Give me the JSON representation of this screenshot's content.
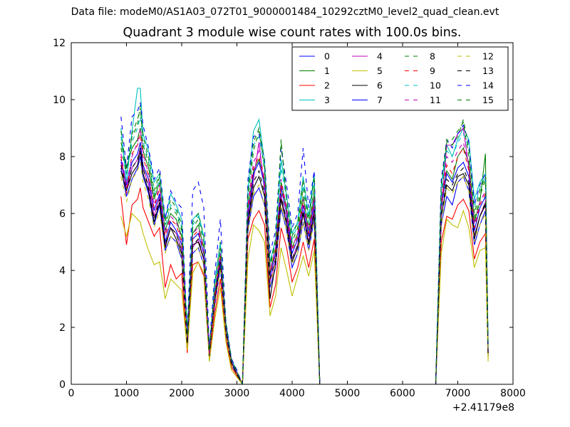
{
  "figure": {
    "supertitle": "Data file: modeM0/AS1A03_072T01_9000001484_10292cztM0_level2_quad_clean.evt"
  },
  "chart_data": {
    "type": "line",
    "title": "Quadrant 3 module wise count rates with 100.0s bins.",
    "xlabel": "",
    "ylabel": "",
    "x_offset_label": "+2.41179e8",
    "xlim": [
      0,
      8000
    ],
    "ylim": [
      0,
      12
    ],
    "xticks": [
      0,
      1000,
      2000,
      3000,
      4000,
      5000,
      6000,
      7000,
      8000
    ],
    "yticks": [
      0,
      2,
      4,
      6,
      8,
      10,
      12
    ],
    "grid": false,
    "legend_position": "top-right",
    "legend_columns": 4,
    "x": [
      900,
      1000,
      1100,
      1200,
      1250,
      1300,
      1400,
      1500,
      1600,
      1700,
      1800,
      1900,
      2000,
      2100,
      2200,
      2300,
      2400,
      2500,
      2600,
      2700,
      2800,
      2900,
      3000,
      3100,
      3200,
      3300,
      3400,
      3500,
      3600,
      3700,
      3800,
      3900,
      4000,
      4100,
      4200,
      4300,
      4400,
      4500,
      4600,
      5000,
      5500,
      6000,
      6500,
      6600,
      6700,
      6800,
      6900,
      7000,
      7100,
      7200,
      7300,
      7400,
      7500,
      7550
    ],
    "gap_value": 0,
    "series": [
      {
        "name": "0",
        "color": "#0000ff",
        "dash": "solid",
        "values": [
          7.6,
          6.6,
          7.2,
          7.6,
          8.0,
          7.3,
          6.7,
          5.6,
          6.3,
          4.7,
          5.2,
          5.0,
          4.4,
          1.3,
          4.6,
          4.8,
          4.2,
          1.0,
          2.8,
          4.1,
          1.8,
          0.7,
          0.35,
          0.0,
          5.4,
          6.6,
          6.9,
          6.3,
          3.4,
          4.1,
          6.2,
          5.4,
          4.1,
          4.6,
          5.7,
          4.7,
          5.8,
          0,
          0,
          0,
          0,
          0,
          0,
          0,
          5.6,
          6.6,
          6.3,
          7.1,
          7.3,
          6.8,
          4.9,
          5.6,
          6.1,
          1.0
        ]
      },
      {
        "name": "1",
        "color": "#008000",
        "dash": "solid",
        "values": [
          8.5,
          7.6,
          8.3,
          8.6,
          9.0,
          8.2,
          7.6,
          6.5,
          7.1,
          5.4,
          6.0,
          5.8,
          5.2,
          1.6,
          5.3,
          5.6,
          4.8,
          1.1,
          3.2,
          4.6,
          2.0,
          0.8,
          0.4,
          0.0,
          6.2,
          7.5,
          7.9,
          7.2,
          3.9,
          4.8,
          7.1,
          6.2,
          4.8,
          5.3,
          6.6,
          5.4,
          6.7,
          0,
          0,
          0,
          0,
          0,
          0,
          0,
          6.4,
          7.5,
          7.2,
          8.0,
          8.3,
          7.8,
          5.7,
          6.4,
          8.1,
          1.2
        ]
      },
      {
        "name": "2",
        "color": "#ff0000",
        "dash": "solid",
        "values": [
          6.6,
          4.9,
          6.3,
          6.5,
          6.9,
          6.2,
          5.7,
          5.2,
          5.5,
          3.4,
          4.2,
          3.7,
          3.9,
          1.1,
          4.2,
          4.3,
          3.8,
          0.9,
          2.5,
          3.7,
          1.6,
          0.6,
          0.3,
          0.0,
          5.1,
          5.8,
          6.1,
          5.6,
          2.7,
          3.5,
          5.5,
          4.8,
          3.6,
          4.1,
          5.0,
          4.1,
          5.1,
          0,
          0,
          0,
          0,
          0,
          0,
          0,
          5.0,
          5.9,
          5.8,
          6.3,
          6.5,
          6.1,
          4.4,
          5.0,
          5.3,
          0.9
        ]
      },
      {
        "name": "3",
        "color": "#00bfbf",
        "dash": "solid",
        "values": [
          9.0,
          7.1,
          8.9,
          10.4,
          10.4,
          8.8,
          8.2,
          7.1,
          7.4,
          5.8,
          6.7,
          6.3,
          5.8,
          1.9,
          5.8,
          6.0,
          5.2,
          1.2,
          3.6,
          5.0,
          2.2,
          0.9,
          0.45,
          0.0,
          6.9,
          8.9,
          9.3,
          7.8,
          4.3,
          5.1,
          7.9,
          6.6,
          5.3,
          5.7,
          7.3,
          5.9,
          7.4,
          0,
          0,
          0,
          0,
          0,
          0,
          0,
          7.0,
          8.4,
          8.0,
          8.6,
          9.0,
          8.6,
          6.5,
          7.1,
          7.4,
          1.3
        ]
      },
      {
        "name": "4",
        "color": "#bf00bf",
        "dash": "solid",
        "values": [
          7.8,
          6.9,
          7.6,
          7.9,
          8.3,
          7.6,
          7.0,
          5.9,
          6.6,
          4.9,
          5.5,
          5.3,
          4.7,
          1.4,
          4.8,
          5.1,
          4.4,
          1.0,
          2.9,
          4.3,
          1.9,
          0.7,
          0.35,
          0.0,
          5.7,
          7.2,
          8.5,
          6.8,
          3.6,
          4.4,
          6.6,
          5.8,
          4.4,
          4.9,
          6.1,
          5.0,
          6.2,
          0,
          0,
          0,
          0,
          0,
          0,
          0,
          6.1,
          8.4,
          8.4,
          8.8,
          9.0,
          7.6,
          5.2,
          5.9,
          6.4,
          1.1
        ]
      },
      {
        "name": "5",
        "color": "#bfbf00",
        "dash": "solid",
        "values": [
          5.9,
          5.2,
          6.0,
          5.8,
          5.7,
          5.3,
          4.7,
          4.2,
          4.3,
          3.0,
          3.7,
          3.5,
          3.3,
          1.2,
          3.9,
          4.3,
          3.9,
          0.8,
          2.3,
          3.4,
          1.5,
          0.5,
          0.25,
          0.0,
          4.4,
          5.6,
          5.4,
          5.0,
          2.4,
          3.1,
          4.8,
          4.0,
          3.1,
          3.8,
          4.5,
          3.8,
          4.7,
          0,
          0,
          0,
          0,
          0,
          0,
          0,
          4.6,
          5.8,
          5.6,
          5.5,
          6.1,
          5.5,
          4.1,
          4.7,
          4.8,
          0.8
        ]
      },
      {
        "name": "6",
        "color": "#000000",
        "dash": "solid",
        "values": [
          7.5,
          6.8,
          7.4,
          7.7,
          8.2,
          7.4,
          6.8,
          5.7,
          6.4,
          4.8,
          5.5,
          5.1,
          4.6,
          1.4,
          4.9,
          5.0,
          4.4,
          1.1,
          3.0,
          4.3,
          1.9,
          0.7,
          0.35,
          0.0,
          5.6,
          6.9,
          7.3,
          6.6,
          3.0,
          4.3,
          6.5,
          5.6,
          4.3,
          4.8,
          6.0,
          4.9,
          6.0,
          0,
          0,
          0,
          0,
          0,
          0,
          0,
          5.9,
          7.0,
          6.8,
          7.3,
          7.4,
          7.0,
          5.1,
          5.9,
          6.3,
          1.0
        ]
      },
      {
        "name": "7",
        "color": "#0000ff",
        "dash": "solid",
        "values": [
          7.9,
          7.0,
          7.8,
          8.1,
          8.5,
          7.7,
          7.2,
          6.1,
          6.7,
          5.0,
          5.7,
          5.4,
          4.9,
          1.5,
          5.1,
          5.3,
          4.6,
          1.1,
          3.1,
          4.4,
          2.0,
          0.75,
          0.4,
          0.0,
          5.9,
          7.4,
          7.8,
          7.0,
          3.8,
          4.6,
          6.9,
          6.0,
          4.6,
          5.1,
          6.3,
          5.2,
          6.4,
          0,
          0,
          0,
          0,
          0,
          0,
          0,
          6.2,
          7.4,
          7.1,
          7.6,
          7.8,
          7.3,
          5.4,
          6.2,
          6.6,
          1.1
        ]
      },
      {
        "name": "8",
        "color": "#008000",
        "dash": "dashed",
        "values": [
          8.3,
          7.4,
          8.7,
          9.1,
          9.8,
          8.4,
          7.8,
          6.6,
          7.3,
          5.6,
          6.2,
          6.0,
          5.4,
          1.7,
          5.5,
          5.8,
          5.0,
          1.2,
          3.3,
          4.8,
          2.1,
          0.85,
          0.45,
          0.0,
          6.5,
          8.2,
          8.9,
          7.5,
          4.1,
          5.0,
          8.6,
          6.4,
          5.0,
          5.5,
          6.9,
          5.6,
          7.0,
          0,
          0,
          0,
          0,
          0,
          0,
          0,
          6.5,
          8.5,
          8.6,
          8.9,
          9.2,
          8.0,
          5.8,
          6.6,
          7.2,
          1.2
        ]
      },
      {
        "name": "9",
        "color": "#ff0000",
        "dash": "dashed",
        "values": [
          8.0,
          6.7,
          8.1,
          8.4,
          8.8,
          8.0,
          7.3,
          6.2,
          6.9,
          5.2,
          5.8,
          5.6,
          5.0,
          1.5,
          5.2,
          5.4,
          4.7,
          1.1,
          3.1,
          4.5,
          2.0,
          0.8,
          0.4,
          0.0,
          6.1,
          7.6,
          8.0,
          7.1,
          3.9,
          4.7,
          7.0,
          6.1,
          4.7,
          5.2,
          6.4,
          5.3,
          6.5,
          0,
          0,
          0,
          0,
          0,
          0,
          0,
          6.2,
          7.7,
          7.4,
          8.0,
          8.3,
          7.5,
          5.5,
          6.3,
          6.7,
          1.1
        ]
      },
      {
        "name": "10",
        "color": "#00bfbf",
        "dash": "dashed",
        "values": [
          8.7,
          7.3,
          8.5,
          9.0,
          9.4,
          8.5,
          7.9,
          6.7,
          7.2,
          5.5,
          6.3,
          6.1,
          5.5,
          1.7,
          5.6,
          5.9,
          5.1,
          1.2,
          3.4,
          4.9,
          2.1,
          0.85,
          0.45,
          0.0,
          6.6,
          8.4,
          8.7,
          7.6,
          4.2,
          5.0,
          7.6,
          6.5,
          5.1,
          5.6,
          7.0,
          5.7,
          7.2,
          0,
          0,
          0,
          0,
          0,
          0,
          0,
          6.8,
          8.2,
          8.0,
          8.5,
          8.8,
          8.3,
          6.2,
          6.9,
          7.3,
          1.3
        ]
      },
      {
        "name": "11",
        "color": "#bf00bf",
        "dash": "dashed",
        "values": [
          8.1,
          7.0,
          8.0,
          8.5,
          9.0,
          8.1,
          7.4,
          6.3,
          7.0,
          5.3,
          5.9,
          5.7,
          5.1,
          1.5,
          5.3,
          5.5,
          4.8,
          1.1,
          3.2,
          4.6,
          2.0,
          0.8,
          0.4,
          0.0,
          6.3,
          7.8,
          8.2,
          7.2,
          4.0,
          4.8,
          7.2,
          6.2,
          4.8,
          5.3,
          6.5,
          5.4,
          6.6,
          0,
          0,
          0,
          0,
          0,
          0,
          0,
          6.3,
          8.0,
          7.8,
          8.2,
          8.5,
          7.7,
          5.6,
          6.4,
          6.8,
          1.1
        ]
      },
      {
        "name": "12",
        "color": "#bfbf00",
        "dash": "dashed",
        "values": [
          7.3,
          6.4,
          7.2,
          7.5,
          7.8,
          7.1,
          6.5,
          5.5,
          6.1,
          4.6,
          5.2,
          5.0,
          4.5,
          1.3,
          4.6,
          4.8,
          4.2,
          1.0,
          2.8,
          4.1,
          1.8,
          0.7,
          0.35,
          0.0,
          5.4,
          6.7,
          7.0,
          6.3,
          3.5,
          4.2,
          6.3,
          5.4,
          4.2,
          4.6,
          5.7,
          4.7,
          5.8,
          0,
          0,
          0,
          0,
          0,
          0,
          0,
          5.6,
          6.9,
          6.7,
          7.1,
          7.3,
          6.8,
          5.0,
          5.6,
          6.0,
          1.0
        ]
      },
      {
        "name": "13",
        "color": "#000000",
        "dash": "dashed",
        "values": [
          7.7,
          6.8,
          7.6,
          7.9,
          8.3,
          7.6,
          6.9,
          5.8,
          6.5,
          4.9,
          5.5,
          5.3,
          4.7,
          1.4,
          4.9,
          5.1,
          4.4,
          1.0,
          3.0,
          4.3,
          1.9,
          0.75,
          0.35,
          0.0,
          5.7,
          7.1,
          7.5,
          6.7,
          3.7,
          4.4,
          6.7,
          5.7,
          4.4,
          4.9,
          6.1,
          5.0,
          6.1,
          0,
          0,
          0,
          0,
          0,
          0,
          0,
          5.9,
          7.2,
          7.0,
          7.4,
          7.6,
          7.1,
          5.2,
          5.9,
          6.4,
          1.0
        ]
      },
      {
        "name": "14",
        "color": "#0000ff",
        "dash": "dashed",
        "values": [
          9.4,
          7.6,
          9.4,
          9.6,
          9.9,
          9.1,
          8.3,
          7.2,
          7.6,
          5.8,
          6.8,
          6.4,
          6.2,
          1.8,
          6.8,
          7.1,
          6.2,
          1.3,
          3.9,
          5.8,
          2.2,
          0.9,
          0.5,
          0.0,
          7.2,
          8.7,
          8.8,
          7.9,
          4.6,
          5.4,
          8.3,
          7.0,
          5.5,
          6.0,
          8.3,
          6.2,
          7.5,
          0,
          0,
          0,
          0,
          0,
          0,
          0,
          7.2,
          8.6,
          8.3,
          8.8,
          9.1,
          8.5,
          6.3,
          7.0,
          7.4,
          1.4
        ]
      },
      {
        "name": "15",
        "color": "#008000",
        "dash": "dashed",
        "values": [
          8.9,
          7.5,
          8.8,
          9.3,
          9.7,
          8.7,
          8.0,
          6.8,
          7.4,
          5.7,
          6.5,
          6.2,
          5.6,
          1.7,
          5.7,
          6.0,
          5.2,
          1.2,
          3.5,
          5.0,
          2.1,
          0.85,
          0.45,
          0.0,
          6.8,
          8.5,
          9.0,
          7.8,
          4.2,
          5.1,
          8.5,
          6.6,
          5.2,
          5.7,
          7.2,
          5.8,
          7.3,
          0,
          0,
          0,
          0,
          0,
          0,
          0,
          7.0,
          8.6,
          8.4,
          8.7,
          9.3,
          8.3,
          6.0,
          6.8,
          7.3,
          1.3
        ]
      }
    ]
  }
}
